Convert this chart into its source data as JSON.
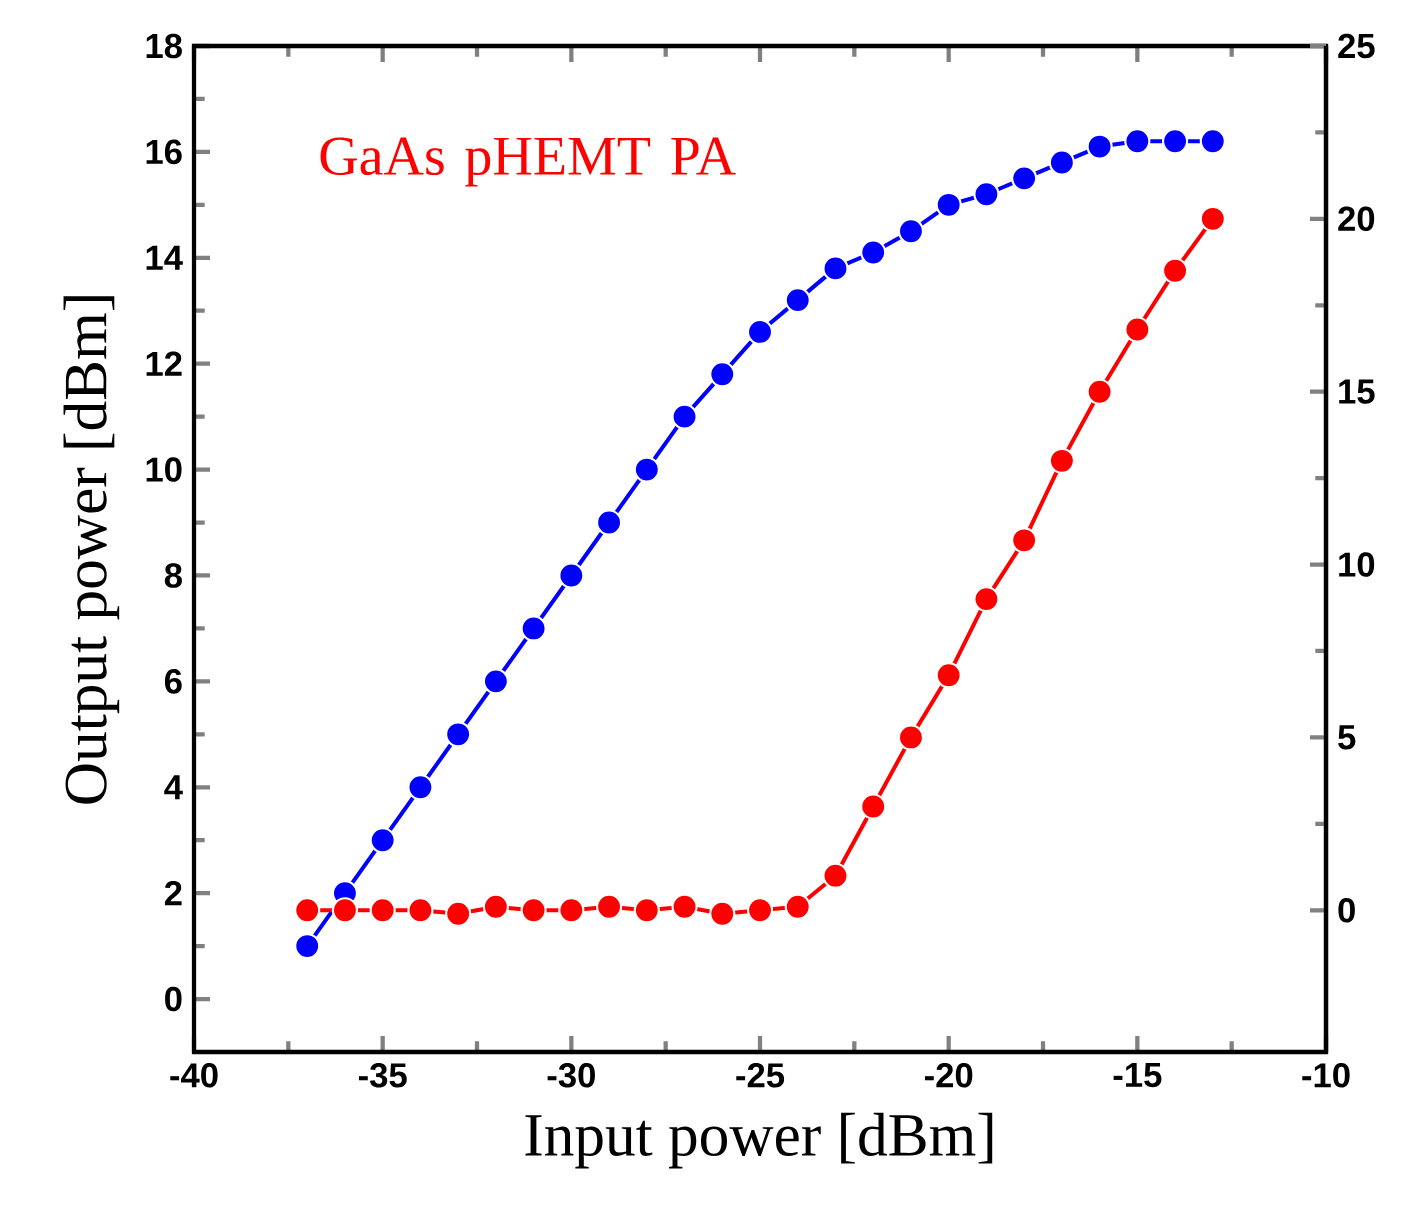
{
  "chart_data": {
    "type": "line",
    "xlabel": "Input power [dBm]",
    "ylabel": "Output power [dBm]",
    "x": [
      -37,
      -36,
      -35,
      -34,
      -33,
      -32,
      -31,
      -30,
      -29,
      -28,
      -27,
      -26,
      -25,
      -24,
      -23,
      -22,
      -21,
      -20,
      -19,
      -18,
      -17,
      -16,
      -15,
      -14,
      -13
    ],
    "series": [
      {
        "color": "#0000ff",
        "values": [
          1,
          2,
          3,
          4,
          5,
          6,
          7,
          8,
          9,
          10,
          11,
          11.8,
          12.6,
          13.2,
          13.8,
          14.1,
          14.5,
          15,
          15.2,
          15.5,
          15.8,
          16.1,
          16.2,
          16.2,
          16.2
        ]
      },
      {
        "color": "#ff0000",
        "axis": "y2",
        "values": [
          0,
          0,
          0,
          0,
          -0.1,
          0.1,
          0,
          0,
          0.1,
          0,
          0.1,
          -0.1,
          0,
          0.1,
          1,
          3,
          5,
          6.8,
          9,
          10.7,
          13,
          15,
          16.8,
          18.5,
          20
        ]
      }
    ],
    "xlim": [
      -40,
      -10
    ],
    "xticks": [
      -40,
      -35,
      -30,
      -25,
      -20,
      -15,
      -10
    ],
    "ylim": [
      -1,
      18
    ],
    "yticks": [
      0,
      2,
      4,
      6,
      8,
      10,
      12,
      14,
      16,
      18
    ],
    "y2lim": [
      -4.1,
      25
    ],
    "y2ticks": [
      0,
      5,
      10,
      15,
      20,
      25
    ],
    "marker": "circle",
    "line_style": "solid",
    "grid": false,
    "annotations": [
      "GaAs pHEMT PA"
    ]
  }
}
